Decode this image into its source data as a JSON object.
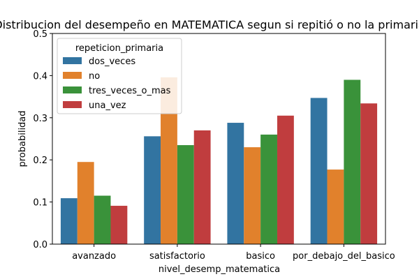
{
  "chart_data": {
    "type": "bar",
    "title": "Distribucion del desempeño en MATEMATICA segun si repitió o no la primaria",
    "xlabel": "nivel_desemp_matematica",
    "ylabel": "probabilidad",
    "categories": [
      "avanzado",
      "satisfactorio",
      "basico",
      "por_debajo_del_basico"
    ],
    "series": [
      {
        "name": "dos_veces",
        "color": "#3274a1",
        "values": [
          0.109,
          0.256,
          0.288,
          0.347
        ]
      },
      {
        "name": "no",
        "color": "#e1812c",
        "values": [
          0.195,
          0.396,
          0.23,
          0.177
        ]
      },
      {
        "name": "tres_veces_o_mas",
        "color": "#3a923a",
        "values": [
          0.115,
          0.235,
          0.26,
          0.39
        ]
      },
      {
        "name": "una_vez",
        "color": "#c03d3e",
        "values": [
          0.091,
          0.27,
          0.305,
          0.334
        ]
      }
    ],
    "ylim": [
      0,
      0.5
    ],
    "yticks": [
      0.0,
      0.1,
      0.2,
      0.3,
      0.4,
      0.5
    ],
    "ytick_labels": [
      "0.0",
      "0.1",
      "0.2",
      "0.3",
      "0.4",
      "0.5"
    ],
    "legend": {
      "title": "repeticion_primaria",
      "position": "top-left"
    },
    "grid": false
  }
}
